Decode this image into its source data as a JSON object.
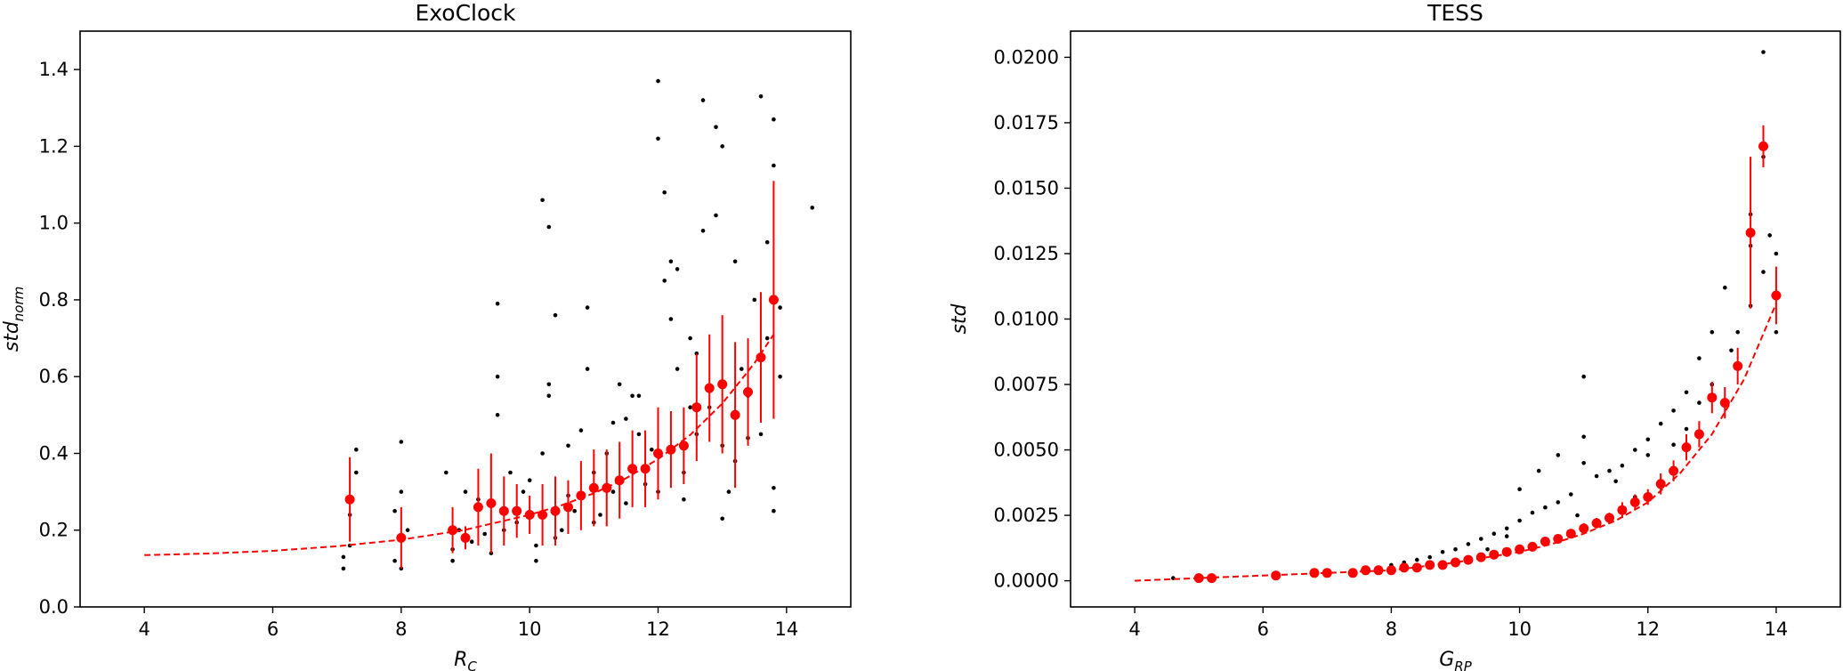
{
  "chart_data": [
    {
      "type": "scatter",
      "title": "ExoClock",
      "xlabel": "R",
      "xlabel_sub": "C",
      "ylabel": "std",
      "ylabel_sub": "norm",
      "xlim": [
        3.0,
        15.0
      ],
      "ylim": [
        0.0,
        1.5
      ],
      "xticks": [
        4,
        6,
        8,
        10,
        12,
        14
      ],
      "xtick_labels": [
        "4",
        "6",
        "8",
        "10",
        "12",
        "14"
      ],
      "yticks": [
        0.0,
        0.2,
        0.4,
        0.6,
        0.8,
        1.0,
        1.2,
        1.4
      ],
      "ytick_labels": [
        "0.0",
        "0.2",
        "0.4",
        "0.6",
        "0.8",
        "1.0",
        "1.2",
        "1.4"
      ],
      "grid": false,
      "colors": {
        "points": "#000000",
        "binned": "#ff0000",
        "fit": "#ff0000"
      },
      "series": [
        {
          "kind": "points",
          "x": [
            7.2,
            7.1,
            7.3,
            7.2,
            7.1,
            7.3,
            8.0,
            7.9,
            8.0,
            8.1,
            7.9,
            8.0,
            8.7,
            8.8,
            8.9,
            8.8,
            9.0,
            9.1,
            9.2,
            9.3,
            9.4,
            9.5,
            9.5,
            9.6,
            9.7,
            9.8,
            9.9,
            10.0,
            10.1,
            10.2,
            10.2,
            10.3,
            10.4,
            10.4,
            10.5,
            10.6,
            10.7,
            10.8,
            10.9,
            11.0,
            11.1,
            11.2,
            11.3,
            11.4,
            11.5,
            11.6,
            11.7,
            11.8,
            11.9,
            12.0,
            12.0,
            12.1,
            12.2,
            12.3,
            12.4,
            12.5,
            12.6,
            12.7,
            12.8,
            12.9,
            13.0,
            13.0,
            13.1,
            13.2,
            13.3,
            13.4,
            13.5,
            13.6,
            13.7,
            13.8,
            13.8,
            13.9,
            14.4,
            12.1,
            12.7,
            12.9,
            13.6,
            13.8,
            10.3,
            10.3,
            9.5,
            10.9,
            12.2,
            12.3,
            13.0,
            13.8,
            13.9,
            11.3,
            11.7,
            12.4,
            12.6,
            13.2,
            13.7,
            10.1,
            10.6,
            11.0,
            11.5,
            12.0,
            12.5,
            13.4
          ],
          "y": [
            0.24,
            0.1,
            0.41,
            0.16,
            0.13,
            0.35,
            0.43,
            0.12,
            0.1,
            0.2,
            0.25,
            0.3,
            0.35,
            0.12,
            0.2,
            0.15,
            0.3,
            0.17,
            0.28,
            0.19,
            0.14,
            0.79,
            0.6,
            0.2,
            0.35,
            0.22,
            0.3,
            0.33,
            0.12,
            0.4,
            1.06,
            0.58,
            0.76,
            0.18,
            0.2,
            0.29,
            0.25,
            0.46,
            0.78,
            0.35,
            0.24,
            0.4,
            0.3,
            0.58,
            0.27,
            0.55,
            0.45,
            0.32,
            0.41,
            1.37,
            1.22,
            1.08,
            0.9,
            0.62,
            0.35,
            0.7,
            0.45,
            0.98,
            0.52,
            1.25,
            0.42,
            1.2,
            0.3,
            0.9,
            0.62,
            0.55,
            0.8,
            1.33,
            0.95,
            1.27,
            1.15,
            0.78,
            1.04,
            0.85,
            1.32,
            1.02,
            0.45,
            0.25,
            0.99,
            0.55,
            0.5,
            0.62,
            0.75,
            0.88,
            0.23,
            0.31,
            0.6,
            0.48,
            0.55,
            0.28,
            0.66,
            0.38,
            0.7,
            0.16,
            0.42,
            0.22,
            0.49,
            0.3,
            0.52,
            0.44
          ]
        },
        {
          "kind": "binned",
          "x": [
            7.2,
            8.0,
            8.8,
            9.0,
            9.2,
            9.4,
            9.6,
            9.8,
            10.0,
            10.2,
            10.4,
            10.6,
            10.8,
            11.0,
            11.2,
            11.4,
            11.6,
            11.8,
            12.0,
            12.2,
            12.4,
            12.6,
            12.8,
            13.0,
            13.2,
            13.4,
            13.6,
            13.8
          ],
          "y": [
            0.28,
            0.18,
            0.2,
            0.18,
            0.26,
            0.27,
            0.25,
            0.25,
            0.24,
            0.24,
            0.25,
            0.26,
            0.29,
            0.31,
            0.31,
            0.33,
            0.36,
            0.36,
            0.4,
            0.41,
            0.42,
            0.52,
            0.57,
            0.58,
            0.5,
            0.56,
            0.65,
            0.8
          ],
          "yerr": [
            0.11,
            0.08,
            0.06,
            0.03,
            0.1,
            0.13,
            0.09,
            0.07,
            0.05,
            0.08,
            0.09,
            0.07,
            0.09,
            0.1,
            0.1,
            0.1,
            0.1,
            0.1,
            0.12,
            0.1,
            0.1,
            0.14,
            0.14,
            0.18,
            0.19,
            0.14,
            0.17,
            0.31
          ]
        },
        {
          "kind": "fit",
          "style": "dashed",
          "x": [
            4.0,
            5.0,
            6.0,
            7.0,
            8.0,
            9.0,
            10.0,
            10.5,
            11.0,
            11.5,
            12.0,
            12.5,
            13.0,
            13.5,
            13.8
          ],
          "y": [
            0.135,
            0.139,
            0.146,
            0.158,
            0.175,
            0.201,
            0.24,
            0.265,
            0.296,
            0.335,
            0.385,
            0.448,
            0.53,
            0.635,
            0.71
          ]
        }
      ]
    },
    {
      "type": "scatter",
      "title": "TESS",
      "xlabel": "G",
      "xlabel_sub": "RP",
      "ylabel": "std",
      "ylabel_sub": "",
      "xlim": [
        3.0,
        15.0
      ],
      "ylim": [
        -0.001,
        0.021
      ],
      "xticks": [
        4,
        6,
        8,
        10,
        12,
        14
      ],
      "xtick_labels": [
        "4",
        "6",
        "8",
        "10",
        "12",
        "14"
      ],
      "yticks": [
        0.0,
        0.0025,
        0.005,
        0.0075,
        0.01,
        0.0125,
        0.015,
        0.0175,
        0.02
      ],
      "ytick_labels": [
        "0.0000",
        "0.0025",
        "0.0050",
        "0.0075",
        "0.0100",
        "0.0125",
        "0.0150",
        "0.0175",
        "0.0200"
      ],
      "grid": false,
      "colors": {
        "points": "#000000",
        "binned": "#ff0000",
        "fit": "#ff0000"
      },
      "series": [
        {
          "kind": "points",
          "x": [
            4.6,
            5.0,
            5.2,
            6.2,
            6.8,
            7.0,
            7.4,
            7.6,
            7.8,
            8.0,
            8.2,
            8.4,
            8.6,
            8.8,
            9.0,
            9.2,
            9.4,
            9.6,
            9.8,
            10.0,
            10.2,
            10.4,
            10.6,
            10.8,
            11.0,
            11.0,
            11.2,
            11.4,
            11.6,
            11.8,
            12.0,
            12.2,
            12.4,
            12.6,
            12.8,
            13.0,
            13.2,
            13.4,
            13.6,
            13.6,
            13.8,
            13.8,
            13.9,
            14.0,
            10.0,
            10.3,
            10.6,
            11.0,
            11.5,
            12.0,
            12.4,
            12.8,
            13.0,
            13.3,
            13.6,
            13.8,
            14.0,
            9.5,
            9.8,
            10.9,
            11.8,
            12.6
          ],
          "y": [
            0.0001,
            0.0002,
            0.0001,
            0.0003,
            0.0003,
            0.0004,
            0.0004,
            0.0005,
            0.0005,
            0.0006,
            0.0007,
            0.0008,
            0.0009,
            0.0011,
            0.0012,
            0.0014,
            0.0016,
            0.0018,
            0.002,
            0.0023,
            0.0026,
            0.0028,
            0.003,
            0.0033,
            0.0078,
            0.0045,
            0.004,
            0.0042,
            0.0044,
            0.005,
            0.0054,
            0.006,
            0.0065,
            0.0072,
            0.0085,
            0.0095,
            0.0112,
            0.0095,
            0.014,
            0.0128,
            0.0202,
            0.0162,
            0.0132,
            0.0125,
            0.0035,
            0.0042,
            0.0048,
            0.0055,
            0.0038,
            0.0048,
            0.0052,
            0.0068,
            0.0075,
            0.0088,
            0.0105,
            0.0118,
            0.0095,
            0.0012,
            0.0017,
            0.0025,
            0.0032,
            0.0058
          ]
        },
        {
          "kind": "binned",
          "x": [
            5.0,
            5.2,
            6.2,
            6.8,
            7.0,
            7.4,
            7.6,
            7.8,
            8.0,
            8.2,
            8.4,
            8.6,
            8.8,
            9.0,
            9.2,
            9.4,
            9.6,
            9.8,
            10.0,
            10.2,
            10.4,
            10.6,
            10.8,
            11.0,
            11.2,
            11.4,
            11.6,
            11.8,
            12.0,
            12.2,
            12.4,
            12.6,
            12.8,
            13.0,
            13.2,
            13.4,
            13.6,
            13.8,
            14.0
          ],
          "y": [
            0.0001,
            0.0001,
            0.0002,
            0.0003,
            0.0003,
            0.0003,
            0.0004,
            0.0004,
            0.0004,
            0.0005,
            0.0005,
            0.0006,
            0.0006,
            0.0007,
            0.0008,
            0.0009,
            0.001,
            0.0011,
            0.0012,
            0.0013,
            0.0015,
            0.0016,
            0.0018,
            0.002,
            0.0022,
            0.0024,
            0.0027,
            0.003,
            0.0032,
            0.0037,
            0.0042,
            0.0051,
            0.0056,
            0.007,
            0.0068,
            0.0082,
            0.0133,
            0.0166,
            0.0109
          ],
          "yerr": [
            0.0,
            0.0,
            0.0,
            0.0,
            0.0,
            0.0,
            0.0,
            0.0,
            0.0,
            0.0,
            0.0,
            0.0,
            0.0,
            0.0,
            0.0,
            0.0,
            0.0,
            0.0,
            0.0001,
            0.0001,
            0.0001,
            0.0001,
            0.0001,
            0.0002,
            0.0002,
            0.0002,
            0.0003,
            0.0003,
            0.0003,
            0.0004,
            0.0004,
            0.0005,
            0.0005,
            0.0006,
            0.0006,
            0.0007,
            0.0029,
            0.0008,
            0.0011
          ]
        },
        {
          "kind": "fit",
          "style": "dashed",
          "x": [
            4.0,
            5.0,
            6.0,
            7.0,
            8.0,
            9.0,
            10.0,
            10.5,
            11.0,
            11.5,
            12.0,
            12.5,
            13.0,
            13.5,
            14.0
          ],
          "y": [
            0.0,
            0.0001,
            0.0002,
            0.0003,
            0.0004,
            0.0007,
            0.0011,
            0.0014,
            0.0018,
            0.0023,
            0.003,
            0.0041,
            0.0056,
            0.0077,
            0.0106
          ]
        }
      ]
    }
  ]
}
